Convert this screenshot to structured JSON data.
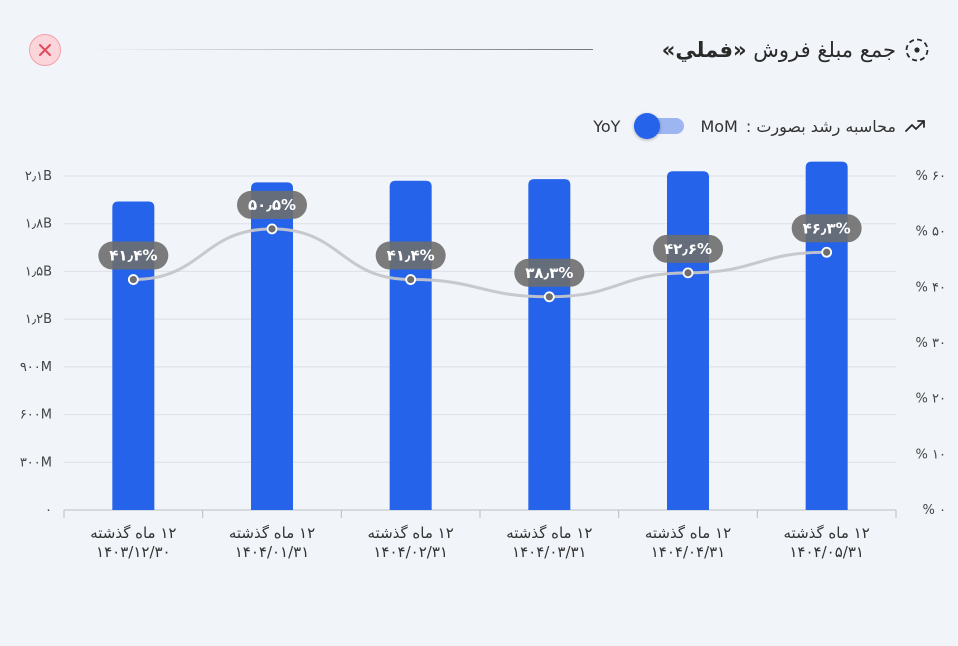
{
  "title": {
    "prefix": "جمع مبلغ فروش",
    "open_quote": "«",
    "highlight": "فملي",
    "close_quote": "»"
  },
  "controls": {
    "growth_label": "محاسبه رشد بصورت :",
    "left_option": "YoY",
    "right_option": "MoM",
    "selected": "YoY"
  },
  "icons": {
    "close": "close-icon",
    "title": "target-icon",
    "growth": "trend-arrow-icon"
  },
  "colors": {
    "bar": "#2563eb",
    "line": "#c4c6ca",
    "badge": "#6e6e6e",
    "close_bg": "#fbd5da",
    "close_x": "#e24a5e"
  },
  "chart_data": {
    "type": "bar",
    "categories": [
      [
        "۱۲ ماه گذشته",
        "۱۴۰۳/۱۲/۳۰"
      ],
      [
        "۱۲ ماه گذشته",
        "۱۴۰۴/۰۱/۳۱"
      ],
      [
        "۱۲ ماه گذشته",
        "۱۴۰۴/۰۲/۳۱"
      ],
      [
        "۱۲ ماه گذشته",
        "۱۴۰۴/۰۳/۳۱"
      ],
      [
        "۱۲ ماه گذشته",
        "۱۴۰۴/۰۴/۳۱"
      ],
      [
        "۱۲ ماه گذشته",
        "۱۴۰۴/۰۵/۳۱"
      ]
    ],
    "series": [
      {
        "type": "bar",
        "axis": "left",
        "values": [
          1.94,
          2.06,
          2.07,
          2.08,
          2.13,
          2.19
        ]
      },
      {
        "type": "line",
        "axis": "right",
        "values": [
          41.4,
          50.5,
          41.4,
          38.3,
          42.6,
          46.3
        ],
        "labels": [
          "۴۱٫۴%",
          "۵۰٫۵%",
          "۴۱٫۴%",
          "۳۸٫۳%",
          "۴۲٫۶%",
          "۴۶٫۳%"
        ]
      }
    ],
    "y_left": {
      "min": 0,
      "max": 2.1,
      "ticks": [
        0,
        0.3,
        0.6,
        0.9,
        1.2,
        1.5,
        1.8,
        2.1
      ],
      "tick_labels": [
        "۰",
        "۳۰۰M",
        "۶۰۰M",
        "۹۰۰M",
        "۱٫۲B",
        "۱٫۵B",
        "۱٫۸B",
        "۲٫۱B"
      ]
    },
    "y_right": {
      "min": 0,
      "max": 60,
      "ticks": [
        0,
        10,
        20,
        30,
        40,
        50,
        60
      ],
      "tick_labels": [
        "% ۰",
        "% ۱۰",
        "% ۲۰",
        "% ۳۰",
        "% ۴۰",
        "% ۵۰",
        "% ۶۰"
      ]
    },
    "grid": true,
    "legend": "none"
  }
}
